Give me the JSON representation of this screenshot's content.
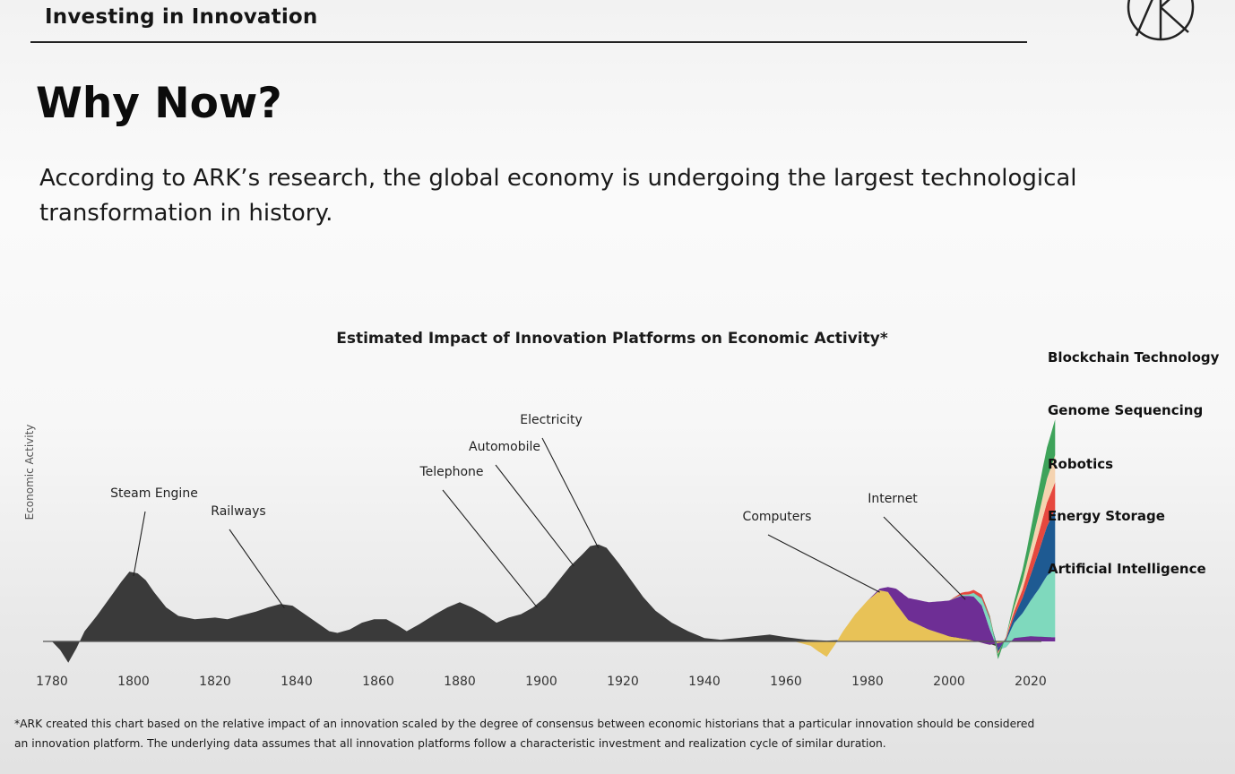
{
  "header": {
    "section_label": "Investing in Innovation",
    "logo_icon": "ark-logo-icon"
  },
  "page": {
    "title": "Why Now?",
    "intro": "According to ARK’s research, the global economy is undergoing the largest technological transformation in history."
  },
  "chart_data": {
    "type": "area",
    "title": "Estimated Impact of Innovation Platforms on Economic Activity*",
    "ylabel": "Economic Activity",
    "xlabel": "",
    "xlim": [
      1775,
      2026
    ],
    "x_ticks": [
      1780,
      1800,
      1820,
      1840,
      1860,
      1880,
      1900,
      1920,
      1940,
      1960,
      1980,
      2000,
      2020
    ],
    "grid": false,
    "legend_position": "right",
    "historical_series": {
      "name": "",
      "color": "#3a3a3a",
      "points": [
        [
          1780,
          0
        ],
        [
          1782,
          -10
        ],
        [
          1784,
          -25
        ],
        [
          1786,
          -8
        ],
        [
          1788,
          12
        ],
        [
          1791,
          30
        ],
        [
          1794,
          50
        ],
        [
          1797,
          70
        ],
        [
          1799,
          82
        ],
        [
          1801,
          80
        ],
        [
          1803,
          72
        ],
        [
          1805,
          58
        ],
        [
          1808,
          40
        ],
        [
          1811,
          30
        ],
        [
          1815,
          26
        ],
        [
          1820,
          28
        ],
        [
          1823,
          26
        ],
        [
          1826,
          30
        ],
        [
          1830,
          35
        ],
        [
          1833,
          40
        ],
        [
          1836,
          44
        ],
        [
          1839,
          42
        ],
        [
          1842,
          32
        ],
        [
          1845,
          22
        ],
        [
          1848,
          12
        ],
        [
          1850,
          10
        ],
        [
          1853,
          14
        ],
        [
          1856,
          22
        ],
        [
          1859,
          26
        ],
        [
          1862,
          26
        ],
        [
          1865,
          18
        ],
        [
          1867,
          12
        ],
        [
          1870,
          20
        ],
        [
          1874,
          32
        ],
        [
          1877,
          40
        ],
        [
          1880,
          46
        ],
        [
          1883,
          40
        ],
        [
          1886,
          32
        ],
        [
          1889,
          22
        ],
        [
          1892,
          28
        ],
        [
          1895,
          32
        ],
        [
          1898,
          40
        ],
        [
          1901,
          52
        ],
        [
          1904,
          70
        ],
        [
          1907,
          88
        ],
        [
          1910,
          102
        ],
        [
          1912,
          112
        ],
        [
          1914,
          114
        ],
        [
          1916,
          110
        ],
        [
          1919,
          92
        ],
        [
          1922,
          72
        ],
        [
          1925,
          52
        ],
        [
          1928,
          36
        ],
        [
          1932,
          22
        ],
        [
          1936,
          12
        ],
        [
          1940,
          4
        ],
        [
          1944,
          2
        ],
        [
          1948,
          4
        ],
        [
          1952,
          6
        ],
        [
          1956,
          8
        ],
        [
          1960,
          5
        ],
        [
          1965,
          2
        ],
        [
          1970,
          1
        ],
        [
          1975,
          2
        ],
        [
          1980,
          4
        ],
        [
          1985,
          6
        ],
        [
          1990,
          7
        ],
        [
          1995,
          8
        ],
        [
          2000,
          7
        ],
        [
          2004,
          8
        ],
        [
          2008,
          7
        ],
        [
          2010,
          -3
        ],
        [
          2012,
          -6
        ],
        [
          2014,
          2
        ],
        [
          2018,
          7
        ],
        [
          2025,
          8
        ]
      ]
    },
    "modern_series": [
      {
        "name": "Computers",
        "color": "#e8c257",
        "points": [
          [
            1962,
            0
          ],
          [
            1966,
            -5
          ],
          [
            1968,
            -12
          ],
          [
            1970,
            -18
          ],
          [
            1972,
            -4
          ],
          [
            1974,
            12
          ],
          [
            1977,
            32
          ],
          [
            1980,
            48
          ],
          [
            1983,
            60
          ],
          [
            1985,
            58
          ],
          [
            1987,
            44
          ],
          [
            1990,
            25
          ],
          [
            1995,
            14
          ],
          [
            2000,
            6
          ],
          [
            2005,
            2
          ],
          [
            2010,
            -4
          ],
          [
            2012,
            -2
          ],
          [
            2015,
            0
          ],
          [
            2025,
            0
          ]
        ]
      },
      {
        "name": "Internet",
        "color": "#6e2e95",
        "points": [
          [
            1980,
            0
          ],
          [
            1983,
            2
          ],
          [
            1985,
            6
          ],
          [
            1987,
            18
          ],
          [
            1990,
            26
          ],
          [
            1995,
            32
          ],
          [
            2000,
            42
          ],
          [
            2003,
            50
          ],
          [
            2006,
            52
          ],
          [
            2008,
            44
          ],
          [
            2010,
            18
          ],
          [
            2012,
            -8
          ],
          [
            2014,
            -6
          ],
          [
            2016,
            4
          ],
          [
            2020,
            6
          ],
          [
            2025,
            5
          ]
        ]
      },
      {
        "name": "Artificial Intelligence",
        "color": "#7fd9bd",
        "points": [
          [
            2000,
            0
          ],
          [
            2005,
            2
          ],
          [
            2008,
            8
          ],
          [
            2010,
            12
          ],
          [
            2012,
            2
          ],
          [
            2014,
            8
          ],
          [
            2016,
            18
          ],
          [
            2018,
            28
          ],
          [
            2020,
            42
          ],
          [
            2022,
            56
          ],
          [
            2024,
            72
          ],
          [
            2026,
            80
          ]
        ]
      },
      {
        "name": "Energy Storage",
        "color": "#1e5a92",
        "points": [
          [
            2005,
            0
          ],
          [
            2010,
            1
          ],
          [
            2012,
            -4
          ],
          [
            2014,
            2
          ],
          [
            2016,
            8
          ],
          [
            2018,
            18
          ],
          [
            2020,
            30
          ],
          [
            2022,
            44
          ],
          [
            2024,
            58
          ],
          [
            2026,
            70
          ]
        ]
      },
      {
        "name": "Robotics",
        "color": "#e6483e",
        "points": [
          [
            2000,
            0
          ],
          [
            2004,
            3
          ],
          [
            2008,
            4
          ],
          [
            2010,
            3
          ],
          [
            2012,
            -2
          ],
          [
            2014,
            2
          ],
          [
            2016,
            6
          ],
          [
            2018,
            10
          ],
          [
            2020,
            16
          ],
          [
            2022,
            22
          ],
          [
            2024,
            28
          ],
          [
            2026,
            32
          ]
        ]
      },
      {
        "name": "Genome Sequencing",
        "color": "#f5d3b0",
        "points": [
          [
            2008,
            0
          ],
          [
            2012,
            -1
          ],
          [
            2014,
            1
          ],
          [
            2016,
            5
          ],
          [
            2018,
            10
          ],
          [
            2020,
            16
          ],
          [
            2022,
            22
          ],
          [
            2024,
            28
          ],
          [
            2026,
            32
          ]
        ]
      },
      {
        "name": "Blockchain Technology",
        "color": "#3ea35a",
        "points": [
          [
            2008,
            0
          ],
          [
            2011,
            -2
          ],
          [
            2012,
            -6
          ],
          [
            2013,
            -3
          ],
          [
            2015,
            4
          ],
          [
            2017,
            10
          ],
          [
            2019,
            16
          ],
          [
            2021,
            26
          ],
          [
            2023,
            34
          ],
          [
            2026,
            42
          ]
        ]
      }
    ],
    "annotations": [
      {
        "label": "Steam Engine",
        "x": 1800
      },
      {
        "label": "Railways",
        "x": 1837
      },
      {
        "label": "Telephone",
        "x": 1899
      },
      {
        "label": "Automobile",
        "x": 1908
      },
      {
        "label": "Electricity",
        "x": 1914
      },
      {
        "label": "Computers",
        "x": 1983
      },
      {
        "label": "Internet",
        "x": 2004
      }
    ],
    "legend": [
      "Blockchain Technology",
      "Genome Sequencing",
      "Robotics",
      "Energy Storage",
      "Artificial Intelligence"
    ]
  },
  "footnote": {
    "line1": "*ARK created this chart based on the relative impact of an innovation scaled by the degree of consensus between economic historians that a particular innovation should be considered",
    "line2": "an innovation platform. The underlying data assumes that all innovation platforms follow a characteristic investment and realization cycle of similar duration."
  }
}
